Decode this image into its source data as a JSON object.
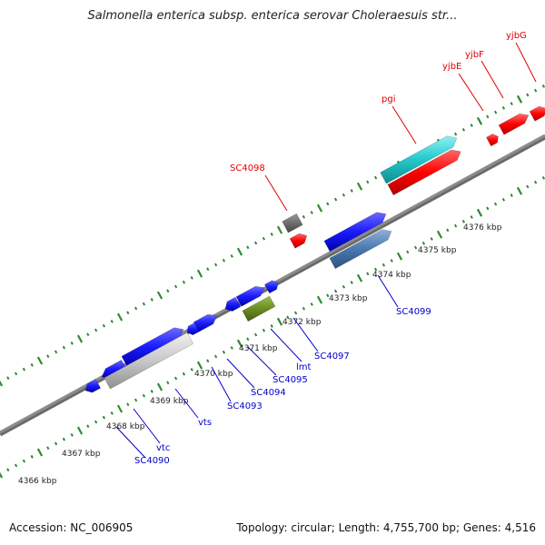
{
  "title": "Salmonella enterica subsp. enterica serovar Choleraesuis str...",
  "footer": {
    "accession": "Accession: NC_006905",
    "summary": "Topology: circular; Length: 4,755,700 bp; Genes: 4,516"
  },
  "colors": {
    "backbone": "#8c8c8c",
    "tick": "#2e8b2e",
    "red": "#ff0000",
    "blue": "#1a1aff",
    "cyan": "#22c8cc",
    "steel": "#4a78b0",
    "olive": "#6b8e23",
    "gray": "#6e6e6e",
    "silver": "#c8c8c8",
    "label_red": "#e00000",
    "label_blue": "#0000cc"
  },
  "kbp_labels": [
    "4366 kbp",
    "4367 kbp",
    "4368 kbp",
    "4369 kbp",
    "4370 kbp",
    "4371 kbp",
    "4372 kbp",
    "4373 kbp",
    "4374 kbp",
    "4375 kbp",
    "4376 kbp"
  ],
  "top_labels": [
    "SC4098",
    "pgi",
    "yjbE",
    "yjbF",
    "yjbG"
  ],
  "bottom_labels": [
    "SC4090",
    "vtc",
    "vts",
    "SC4093",
    "SC4094",
    "SC4095",
    "lmt",
    "SC4097",
    "SC4099"
  ]
}
